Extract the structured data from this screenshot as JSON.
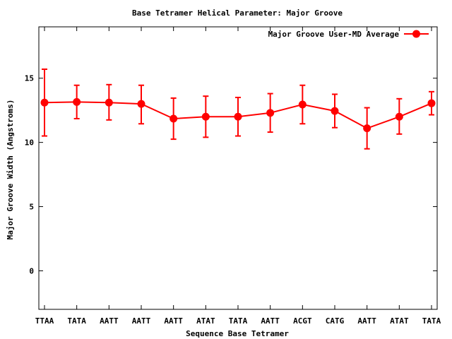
{
  "chart_data": {
    "type": "line",
    "title": "Base Tetramer Helical Parameter: Major Groove",
    "xlabel": "Sequence Base Tetramer",
    "ylabel": "Major Groove Width (Angstroms)",
    "categories": [
      "TTAA",
      "TATA",
      "AATT",
      "AATT",
      "AATT",
      "ATAT",
      "TATA",
      "AATT",
      "ACGT",
      "CATG",
      "AATT",
      "ATAT",
      "TATA"
    ],
    "ylim": [
      -3,
      19
    ],
    "yticks": [
      0,
      5,
      10,
      15
    ],
    "grid": false,
    "legend_position": "top-right",
    "series_color": "#ff0000",
    "series": [
      {
        "name": "Major Groove User-MD Average",
        "values": [
          13.1,
          13.15,
          13.1,
          13.0,
          11.85,
          12.0,
          12.0,
          12.3,
          12.95,
          12.45,
          11.1,
          12.0,
          13.05
        ],
        "err_low": [
          10.5,
          11.85,
          11.75,
          11.45,
          10.25,
          10.4,
          10.5,
          10.8,
          11.45,
          11.15,
          9.5,
          10.65,
          12.15
        ],
        "err_high": [
          15.7,
          14.45,
          14.5,
          14.45,
          13.45,
          13.6,
          13.5,
          13.8,
          14.45,
          13.75,
          12.7,
          13.4,
          13.95
        ]
      }
    ]
  }
}
